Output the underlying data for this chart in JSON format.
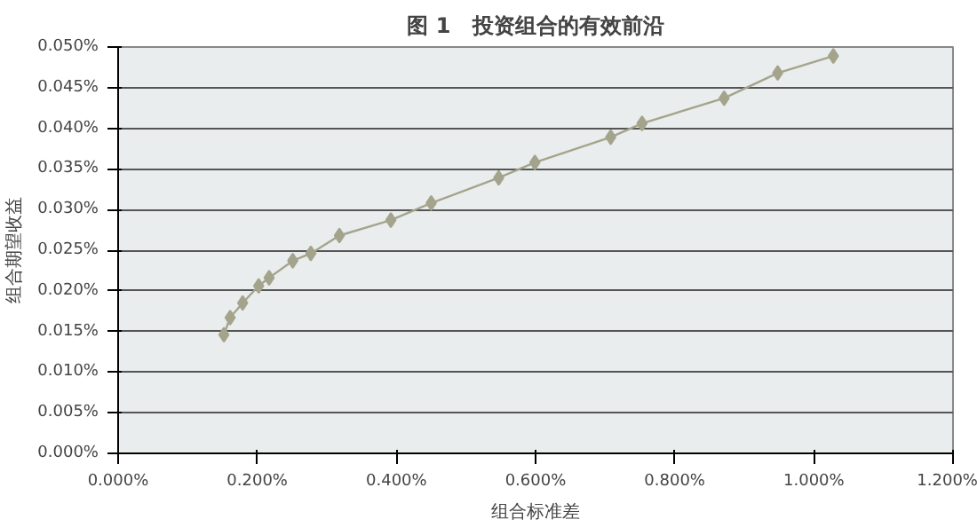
{
  "chart_data": {
    "type": "line",
    "title": "图 1　投资组合的有效前沿",
    "xlabel": "组合标准差",
    "ylabel": "组合期望收益",
    "x": [
      0.152,
      0.161,
      0.179,
      0.202,
      0.217,
      0.251,
      0.277,
      0.318,
      0.392,
      0.45,
      0.547,
      0.599,
      0.708,
      0.753,
      0.871,
      0.948,
      1.028
    ],
    "series": [
      {
        "color": "#a4a48c",
        "values": [
          0.0146,
          0.0167,
          0.0185,
          0.0206,
          0.0216,
          0.0237,
          0.0246,
          0.0268,
          0.0287,
          0.0308,
          0.0339,
          0.0358,
          0.0389,
          0.0406,
          0.0437,
          0.0468,
          0.0489
        ]
      }
    ],
    "xlim": [
      0,
      1.2
    ],
    "ylim": [
      0,
      0.05
    ],
    "xticks": [
      {
        "value": 0,
        "label": "0.000%"
      },
      {
        "value": 0.2,
        "label": "0.200%"
      },
      {
        "value": 0.4,
        "label": "0.400%"
      },
      {
        "value": 0.6,
        "label": "0.600%"
      },
      {
        "value": 0.8,
        "label": "0.800%"
      },
      {
        "value": 1.0,
        "label": "1.000%"
      },
      {
        "value": 1.2,
        "label": "1.200%"
      }
    ],
    "yticks": [
      {
        "value": 0,
        "label": "0.000%"
      },
      {
        "value": 0.005,
        "label": "0.005%"
      },
      {
        "value": 0.01,
        "label": "0.010%"
      },
      {
        "value": 0.015,
        "label": "0.015%"
      },
      {
        "value": 0.02,
        "label": "0.020%"
      },
      {
        "value": 0.025,
        "label": "0.025%"
      },
      {
        "value": 0.03,
        "label": "0.030%"
      },
      {
        "value": 0.035,
        "label": "0.035%"
      },
      {
        "value": 0.04,
        "label": "0.040%"
      },
      {
        "value": 0.045,
        "label": "0.045%"
      },
      {
        "value": 0.05,
        "label": "0.050%"
      }
    ],
    "grid": "y",
    "marker": "diamond",
    "line_style": "solid"
  }
}
